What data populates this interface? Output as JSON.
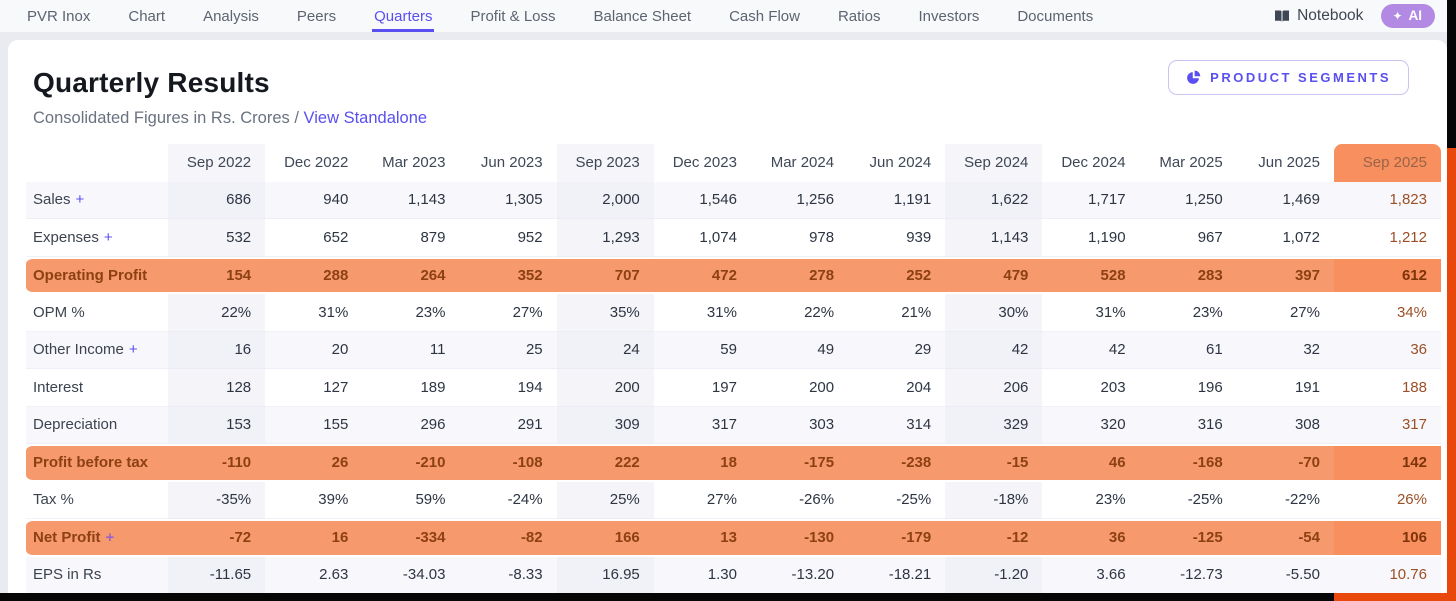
{
  "nav": {
    "items": [
      "PVR Inox",
      "Chart",
      "Analysis",
      "Peers",
      "Quarters",
      "Profit & Loss",
      "Balance Sheet",
      "Cash Flow",
      "Ratios",
      "Investors",
      "Documents"
    ],
    "active": "Quarters",
    "notebook_label": "Notebook",
    "ai_label": "AI",
    "ai_icon": "✦"
  },
  "header": {
    "title": "Quarterly Results",
    "subtitle_prefix": "Consolidated Figures in Rs. Crores /",
    "standalone_link": "View Standalone",
    "segments_button": "PRODUCT SEGMENTS"
  },
  "table": {
    "expand_symbol": "+",
    "columns": [
      "Sep 2022",
      "Dec 2022",
      "Mar 2023",
      "Jun 2023",
      "Sep 2023",
      "Dec 2023",
      "Mar 2024",
      "Jun 2024",
      "Sep 2024",
      "Dec 2024",
      "Mar 2025",
      "Jun 2025",
      "Sep 2025"
    ],
    "sep_column_indexes": [
      0,
      4,
      8
    ],
    "highlight_column_index": 12,
    "rows": [
      {
        "label": "Sales",
        "expandable": true,
        "type": "striped",
        "values": [
          "686",
          "940",
          "1,143",
          "1,305",
          "2,000",
          "1,546",
          "1,256",
          "1,191",
          "1,622",
          "1,717",
          "1,250",
          "1,469",
          "1,823"
        ]
      },
      {
        "label": "Expenses",
        "expandable": true,
        "type": "plain",
        "values": [
          "532",
          "652",
          "879",
          "952",
          "1,293",
          "1,074",
          "978",
          "939",
          "1,143",
          "1,190",
          "967",
          "1,072",
          "1,212"
        ]
      },
      {
        "label": "Operating Profit",
        "expandable": false,
        "type": "highlight",
        "values": [
          "154",
          "288",
          "264",
          "352",
          "707",
          "472",
          "278",
          "252",
          "479",
          "528",
          "283",
          "397",
          "612"
        ]
      },
      {
        "label": "OPM %",
        "expandable": false,
        "type": "plain",
        "values": [
          "22%",
          "31%",
          "23%",
          "27%",
          "35%",
          "31%",
          "22%",
          "21%",
          "30%",
          "31%",
          "23%",
          "27%",
          "34%"
        ]
      },
      {
        "label": "Other Income",
        "expandable": true,
        "type": "striped",
        "values": [
          "16",
          "20",
          "11",
          "25",
          "24",
          "59",
          "49",
          "29",
          "42",
          "42",
          "61",
          "32",
          "36"
        ]
      },
      {
        "label": "Interest",
        "expandable": false,
        "type": "plain",
        "values": [
          "128",
          "127",
          "189",
          "194",
          "200",
          "197",
          "200",
          "204",
          "206",
          "203",
          "196",
          "191",
          "188"
        ]
      },
      {
        "label": "Depreciation",
        "expandable": false,
        "type": "striped",
        "values": [
          "153",
          "155",
          "296",
          "291",
          "309",
          "317",
          "303",
          "314",
          "329",
          "320",
          "316",
          "308",
          "317"
        ]
      },
      {
        "label": "Profit before tax",
        "expandable": false,
        "type": "highlight",
        "values": [
          "-110",
          "26",
          "-210",
          "-108",
          "222",
          "18",
          "-175",
          "-238",
          "-15",
          "46",
          "-168",
          "-70",
          "142"
        ]
      },
      {
        "label": "Tax %",
        "expandable": false,
        "type": "plain",
        "values": [
          "-35%",
          "39%",
          "59%",
          "-24%",
          "25%",
          "27%",
          "-26%",
          "-25%",
          "-18%",
          "23%",
          "-25%",
          "-22%",
          "26%"
        ]
      },
      {
        "label": "Net Profit",
        "expandable": true,
        "type": "highlight",
        "values": [
          "-72",
          "16",
          "-334",
          "-82",
          "166",
          "13",
          "-130",
          "-179",
          "-12",
          "36",
          "-125",
          "-54",
          "106"
        ]
      },
      {
        "label": "EPS in Rs",
        "expandable": false,
        "type": "striped",
        "values": [
          "-11.65",
          "2.63",
          "-34.03",
          "-8.33",
          "16.95",
          "1.30",
          "-13.20",
          "-18.21",
          "-1.20",
          "3.66",
          "-12.73",
          "-5.50",
          "10.76"
        ]
      }
    ]
  },
  "colors": {
    "accent": "#5a4ff0",
    "ai_pill": "#b28ae4",
    "highlight_row_orange": "#f69a6e",
    "highlight_column_orange": "#f78f5e",
    "scrollbar_orange": "#e8480b",
    "scrollbar_black": "#060606"
  }
}
